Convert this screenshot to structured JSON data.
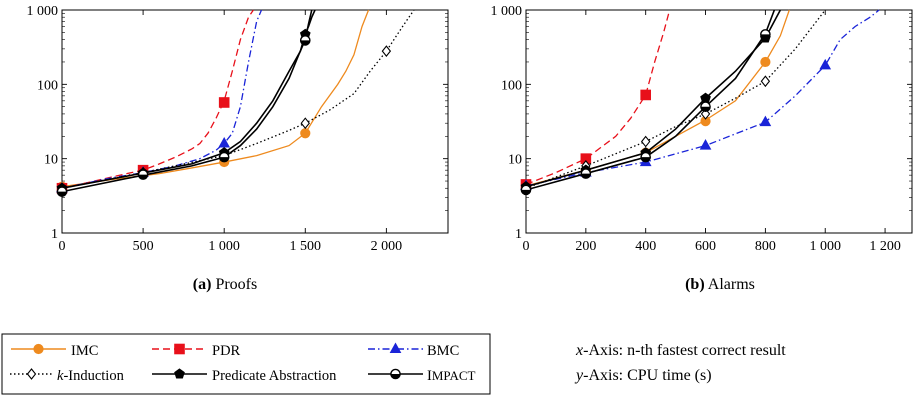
{
  "colors": {
    "IMC": "#ee8a1e",
    "PDR": "#e8101a",
    "BMC": "#1a24d8",
    "kInduction": "#000000",
    "PredicateAbstraction": "#000000",
    "IMPACT": "#000000"
  },
  "legend": {
    "IMC": "IMC",
    "PDR": "PDR",
    "BMC": "BMC",
    "kInduction_k": "k",
    "kInduction_rest": "-Induction",
    "PredicateAbstraction": "Predicate Abstraction",
    "IMPACT_first": "I",
    "IMPACT_rest": "MPACT"
  },
  "notes": {
    "x_var": "x",
    "x_text": "-Axis: n-th fastest correct result",
    "y_var": "y",
    "y_text": "-Axis: CPU time (s)"
  },
  "chart_data": [
    {
      "type": "line",
      "caption_tag": "(a)",
      "caption": "Proofs",
      "ylog": true,
      "ylim": [
        1,
        1000
      ],
      "xlim": [
        0,
        2380
      ],
      "yticks": [
        "1",
        "10",
        "100",
        "1 000"
      ],
      "xticks": [
        "0",
        "500",
        "1 000",
        "1 500",
        "2 000"
      ],
      "series": [
        {
          "name": "IMC",
          "style": "solid",
          "marker": "circle",
          "x": [
            0,
            300,
            600,
            800,
            1000,
            1200,
            1400,
            1500,
            1600,
            1700,
            1750,
            1800,
            1850,
            1890
          ],
          "y": [
            4.2,
            5.2,
            6.3,
            7.5,
            9,
            11,
            15,
            22,
            50,
            100,
            150,
            250,
            600,
            1000
          ],
          "mx": [
            0,
            500,
            1000,
            1500
          ],
          "my": [
            4.2,
            6.2,
            9,
            22
          ]
        },
        {
          "name": "PDR",
          "style": "dashed",
          "marker": "square",
          "x": [
            0,
            200,
            400,
            500,
            600,
            700,
            800,
            850,
            900,
            950,
            1000,
            1050,
            1100,
            1150,
            1180
          ],
          "y": [
            4,
            5,
            6.3,
            7,
            8.5,
            10.5,
            13.5,
            16,
            22,
            35,
            60,
            150,
            400,
            800,
            1000
          ],
          "mx": [
            0,
            500,
            1000
          ],
          "my": [
            4,
            7,
            57
          ]
        },
        {
          "name": "BMC",
          "style": "dashdot",
          "marker": "triangle",
          "x": [
            0,
            300,
            500,
            700,
            850,
            950,
            1000,
            1050,
            1100,
            1150,
            1200,
            1230
          ],
          "y": [
            4,
            5.5,
            6.5,
            8,
            10,
            13,
            16,
            22,
            50,
            200,
            700,
            1000
          ],
          "mx": [
            0,
            500,
            1000
          ],
          "my": [
            4,
            6.5,
            16
          ]
        },
        {
          "name": "k-Induction",
          "style": "dotted",
          "marker": "diamond",
          "x": [
            0,
            500,
            1000,
            1200,
            1400,
            1500,
            1650,
            1800,
            1900,
            2000,
            2100,
            2170
          ],
          "y": [
            4,
            6.5,
            11,
            16,
            24,
            30,
            45,
            75,
            150,
            280,
            600,
            1000
          ],
          "mx": [
            0,
            500,
            1000,
            1500,
            2000
          ],
          "my": [
            4,
            6.5,
            11,
            30,
            280
          ]
        },
        {
          "name": "Predicate Abstraction",
          "style": "solid",
          "marker": "pentagon",
          "x": [
            0,
            500,
            800,
            1000,
            1100,
            1200,
            1300,
            1400,
            1470,
            1500,
            1520,
            1540,
            1560
          ],
          "y": [
            4,
            6.4,
            8.5,
            12,
            17,
            30,
            60,
            150,
            280,
            480,
            600,
            800,
            1000
          ],
          "mx": [
            0,
            500,
            1000,
            1500
          ],
          "my": [
            4,
            6.4,
            12,
            470
          ]
        },
        {
          "name": "IMPACT",
          "style": "solid",
          "marker": "halfcircle",
          "x": [
            0,
            500,
            800,
            1000,
            1100,
            1200,
            1300,
            1400,
            1460,
            1500,
            1520,
            1540
          ],
          "y": [
            3.6,
            6,
            8,
            10.5,
            15,
            25,
            50,
            120,
            250,
            400,
            650,
            1000
          ],
          "mx": [
            0,
            500,
            1000,
            1500
          ],
          "my": [
            3.6,
            6.1,
            10.5,
            390
          ]
        }
      ]
    },
    {
      "type": "line",
      "caption_tag": "(b)",
      "caption": "Alarms",
      "ylog": true,
      "ylim": [
        1,
        1000
      ],
      "xlim": [
        0,
        1290
      ],
      "yticks": [
        "1",
        "10",
        "100",
        "1 000"
      ],
      "xticks": [
        "0",
        "200",
        "400",
        "600",
        "800",
        "1 000",
        "1 200"
      ],
      "series": [
        {
          "name": "IMC",
          "style": "solid",
          "marker": "circle",
          "x": [
            0,
            200,
            400,
            500,
            600,
            700,
            800,
            850,
            880
          ],
          "y": [
            4.3,
            7,
            12,
            20,
            33,
            60,
            200,
            450,
            1000
          ],
          "mx": [
            0,
            200,
            400,
            600,
            800
          ],
          "my": [
            4.3,
            7,
            12,
            32,
            200
          ]
        },
        {
          "name": "PDR",
          "style": "dashed",
          "marker": "square",
          "x": [
            0,
            100,
            200,
            300,
            350,
            400,
            430,
            460,
            480
          ],
          "y": [
            4.5,
            6.5,
            10,
            20,
            35,
            72,
            200,
            500,
            1000
          ],
          "mx": [
            0,
            200,
            400
          ],
          "my": [
            4.5,
            10,
            72
          ]
        },
        {
          "name": "BMC",
          "style": "dashdot",
          "marker": "triangle",
          "x": [
            0,
            200,
            400,
            600,
            800,
            900,
            1000,
            1050,
            1100,
            1150,
            1180
          ],
          "y": [
            4.3,
            6.5,
            9,
            15,
            31,
            70,
            180,
            400,
            600,
            800,
            1000
          ],
          "mx": [
            0,
            200,
            400,
            600,
            800,
            1000
          ],
          "my": [
            4.3,
            6.5,
            9,
            15,
            31,
            180
          ]
        },
        {
          "name": "k-Induction",
          "style": "dotted",
          "marker": "diamond",
          "x": [
            0,
            200,
            400,
            500,
            600,
            700,
            800,
            900,
            1000
          ],
          "y": [
            4,
            8,
            17,
            27,
            40,
            65,
            110,
            300,
            1000
          ],
          "mx": [
            0,
            200,
            400,
            600,
            800
          ],
          "my": [
            4,
            8,
            17,
            40,
            110
          ]
        },
        {
          "name": "Predicate Abstraction",
          "style": "solid",
          "marker": "pentagon",
          "x": [
            0,
            200,
            400,
            500,
            600,
            700,
            800,
            850
          ],
          "y": [
            4.2,
            7,
            12,
            25,
            65,
            150,
            420,
            1000
          ],
          "mx": [
            0,
            200,
            400,
            600,
            800
          ],
          "my": [
            4.2,
            7,
            12,
            65,
            420
          ]
        },
        {
          "name": "IMPACT",
          "style": "solid",
          "marker": "halfcircle",
          "x": [
            0,
            200,
            400,
            500,
            600,
            700,
            800,
            830
          ],
          "y": [
            3.8,
            6.3,
            10.5,
            20,
            50,
            120,
            480,
            1000
          ],
          "mx": [
            0,
            200,
            400,
            600,
            800
          ],
          "my": [
            3.8,
            6.3,
            10.5,
            50,
            470
          ]
        }
      ]
    }
  ]
}
